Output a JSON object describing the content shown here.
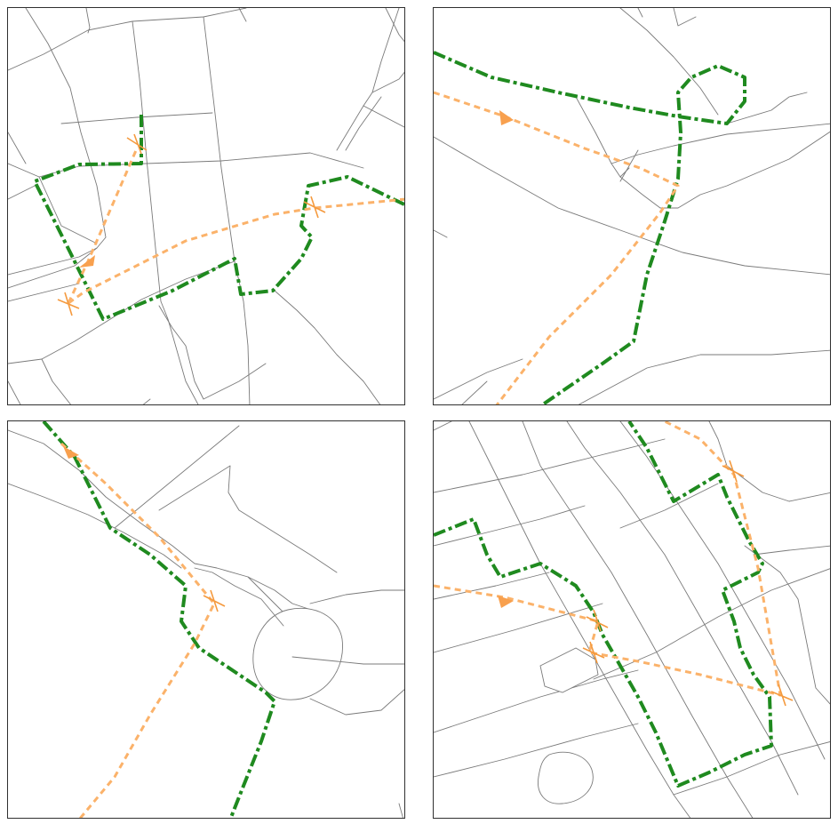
{
  "figure": {
    "panel_count": 4,
    "panels": [
      {
        "id": "top-left"
      },
      {
        "id": "top-right"
      },
      {
        "id": "bottom-left"
      },
      {
        "id": "bottom-right"
      }
    ]
  },
  "colors": {
    "background": "#ffffff",
    "panel_border": "#303030",
    "road": "#7a7a7a",
    "green_route": "#1f8a1f",
    "orange_route": "#fbb26a",
    "orange_marker": "#f59a3e"
  },
  "legend": {
    "shown": false
  },
  "icons": {
    "waypoint_marker": "cross-marker-icon",
    "direction_marker": "arrowhead-icon"
  }
}
